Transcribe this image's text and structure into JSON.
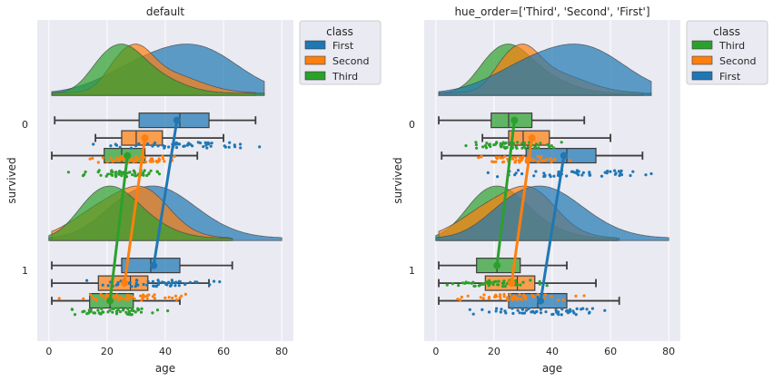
{
  "figure": {
    "background": "#ffffff",
    "axes_background": "#eaeaf2",
    "grid_color": "#ffffff"
  },
  "palette": {
    "First": "#1f77b4",
    "Second": "#ff7f0e",
    "Third": "#2ca02c"
  },
  "chart_data": [
    {
      "type": "raincloud",
      "title": "default",
      "xlabel": "age",
      "ylabel": "survived",
      "xlim": [
        -4,
        84
      ],
      "xticks": [
        0,
        20,
        40,
        60,
        80
      ],
      "ycategories": [
        "0",
        "1"
      ],
      "grid": true,
      "legend": {
        "title": "class",
        "placement": "outside-right",
        "entries": [
          "First",
          "Second",
          "Third"
        ]
      },
      "hue_order": [
        "First",
        "Second",
        "Third"
      ],
      "groups": [
        {
          "survived": "0",
          "series": [
            {
              "name": "First",
              "box": {
                "whislo": 2,
                "q1": 31,
                "med": 45,
                "q3": 55,
                "whishi": 71
              },
              "mean": 44,
              "range": [
                1,
                74
              ]
            },
            {
              "name": "Second",
              "box": {
                "whislo": 16,
                "q1": 25,
                "med": 30,
                "q3": 39,
                "whishi": 60
              },
              "mean": 33,
              "range": [
                1,
                71
              ]
            },
            {
              "name": "Third",
              "box": {
                "whislo": 1,
                "q1": 19,
                "med": 25,
                "q3": 33,
                "whishi": 51
              },
              "mean": 27,
              "range": [
                1,
                74
              ]
            }
          ]
        },
        {
          "survived": "1",
          "series": [
            {
              "name": "First",
              "box": {
                "whislo": 1,
                "q1": 25,
                "med": 35,
                "q3": 45,
                "whishi": 63
              },
              "mean": 36,
              "range": [
                0,
                80
              ]
            },
            {
              "name": "Second",
              "box": {
                "whislo": 1,
                "q1": 17,
                "med": 28,
                "q3": 34,
                "whishi": 55
              },
              "mean": 26,
              "range": [
                1,
                62
              ]
            },
            {
              "name": "Third",
              "box": {
                "whislo": 1,
                "q1": 14,
                "med": 21,
                "q3": 29,
                "whishi": 45
              },
              "mean": 21,
              "range": [
                0,
                63
              ]
            }
          ]
        }
      ]
    },
    {
      "type": "raincloud",
      "title": "hue_order=['Third', 'Second', 'First']",
      "xlabel": "age",
      "ylabel": "survived",
      "xlim": [
        -4,
        84
      ],
      "xticks": [
        0,
        20,
        40,
        60,
        80
      ],
      "ycategories": [
        "0",
        "1"
      ],
      "grid": true,
      "legend": {
        "title": "class",
        "placement": "outside-right",
        "entries": [
          "Third",
          "Second",
          "First"
        ]
      },
      "hue_order": [
        "Third",
        "Second",
        "First"
      ],
      "groups": [
        {
          "survived": "0",
          "series": [
            {
              "name": "Third",
              "box": {
                "whislo": 1,
                "q1": 19,
                "med": 25,
                "q3": 33,
                "whishi": 51
              },
              "mean": 27,
              "range": [
                1,
                74
              ]
            },
            {
              "name": "Second",
              "box": {
                "whislo": 16,
                "q1": 25,
                "med": 30,
                "q3": 39,
                "whishi": 60
              },
              "mean": 33,
              "range": [
                1,
                71
              ]
            },
            {
              "name": "First",
              "box": {
                "whislo": 2,
                "q1": 31,
                "med": 45,
                "q3": 55,
                "whishi": 71
              },
              "mean": 44,
              "range": [
                1,
                74
              ]
            }
          ]
        },
        {
          "survived": "1",
          "series": [
            {
              "name": "Third",
              "box": {
                "whislo": 1,
                "q1": 14,
                "med": 21,
                "q3": 29,
                "whishi": 45
              },
              "mean": 21,
              "range": [
                0,
                63
              ]
            },
            {
              "name": "Second",
              "box": {
                "whislo": 1,
                "q1": 17,
                "med": 28,
                "q3": 34,
                "whishi": 55
              },
              "mean": 26,
              "range": [
                1,
                62
              ]
            },
            {
              "name": "First",
              "box": {
                "whislo": 1,
                "q1": 25,
                "med": 35,
                "q3": 45,
                "whishi": 63
              },
              "mean": 36,
              "range": [
                0,
                80
              ]
            }
          ]
        }
      ]
    }
  ]
}
